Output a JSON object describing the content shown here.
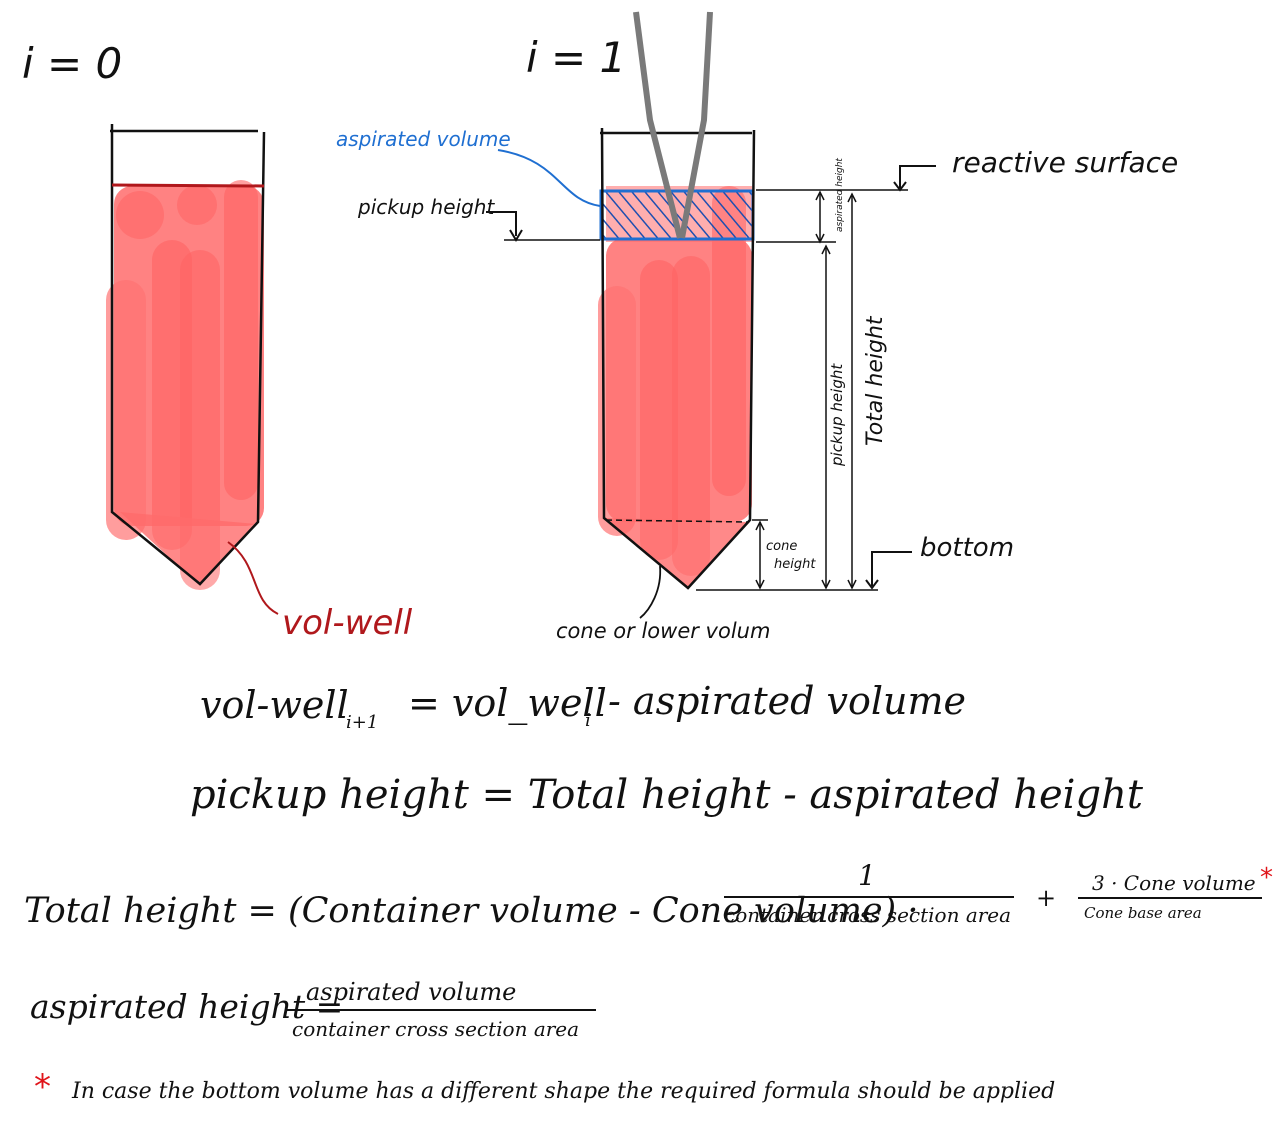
{
  "labels": {
    "i0": "i = 0",
    "i1": "i = 1",
    "aspirated_volume": "aspirated volume",
    "pickup_height": "pickup height",
    "reactive_surface": "reactive surface",
    "aspirated_height_small": "aspirated height",
    "pickup_height_vertical": "pickup height",
    "total_height_vertical": "Total height",
    "cone_height": "cone height",
    "bottom": "bottom",
    "vol_well": "vol-well",
    "cone_or_lower": "cone or lower volum"
  },
  "equations": {
    "eq1_lhs": "vol-well",
    "eq1_lhs_sub": "i+1",
    "eq1_mid": "= vol_well",
    "eq1_mid_sub": "i",
    "eq1_rhs": "- aspirated volume",
    "eq2": "pickup height = Total height - aspirated height",
    "eq3_lhs": "Total height = (Container volume - Cone volume) ·",
    "eq3_frac1_num": "1",
    "eq3_frac1_den": "container cross section area",
    "eq3_plus": "+",
    "eq3_frac2_num": "3 · Cone volume",
    "eq3_frac2_den": "Cone base area",
    "eq3_star": "*",
    "eq4_lhs": "aspirated height =",
    "eq4_num": "aspirated volume",
    "eq4_den": "container cross section area",
    "footnote_star": "*",
    "footnote": "In case the bottom volume has a different shape the required formula should be applied"
  },
  "colors": {
    "liquid": "#ff3b3b",
    "aspirated_blue": "#1f6fd1",
    "pipette": "#7a7a7a",
    "star_red": "#e0141a",
    "vol_well_red": "#b0181c"
  }
}
